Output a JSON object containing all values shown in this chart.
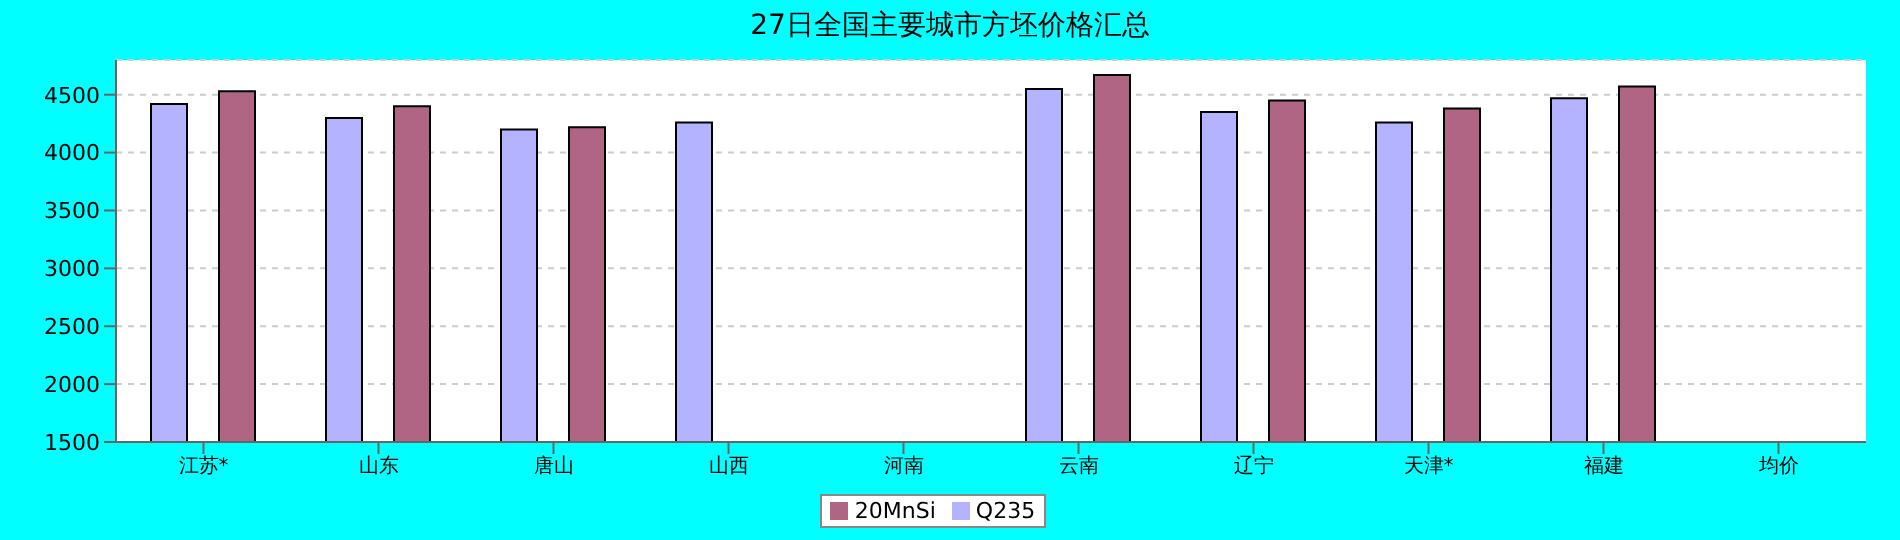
{
  "chart_data": {
    "type": "bar",
    "title": "27日全国主要城市方坯价格汇总",
    "categories": [
      "江苏*",
      "山东",
      "唐山",
      "山西",
      "河南",
      "云南",
      "辽宁",
      "天津*",
      "福建",
      "均价"
    ],
    "series": [
      {
        "name": "Q235",
        "color": "#b3b3ff",
        "values": [
          4420,
          4300,
          4200,
          4260,
          null,
          4550,
          4350,
          4260,
          4470,
          null
        ]
      },
      {
        "name": "20MnSi",
        "color": "#b06585",
        "values": [
          4530,
          4400,
          4220,
          null,
          null,
          4670,
          4450,
          4380,
          4570,
          null
        ]
      }
    ],
    "ylim": [
      1500,
      4800
    ],
    "yticks": [
      1500,
      2000,
      2500,
      3000,
      3500,
      4000,
      4500
    ],
    "grid": "y",
    "legend": "bottom"
  }
}
